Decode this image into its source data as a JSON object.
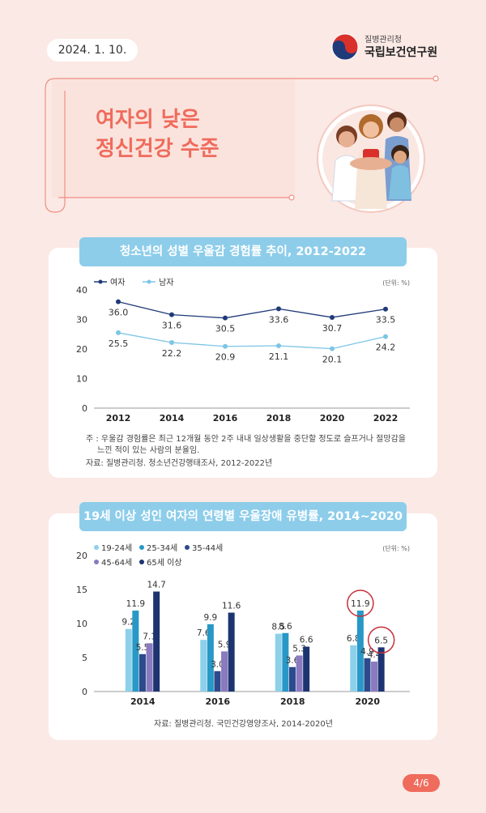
{
  "header": {
    "date": "2024. 1. 10.",
    "org_small": "질병관리청",
    "org_name": "국립보건연구원"
  },
  "title": {
    "line1": "여자의 낮은",
    "line2": "정신건강 수준"
  },
  "page": "4/6",
  "colors": {
    "accent": "#ef6b5c",
    "chip": "#8dcdea"
  },
  "chart_data": [
    {
      "type": "line",
      "title": "청소년의 성별 우울감 경험률 추이, 2012-2022",
      "unit": "(단위: %)",
      "x": [
        "2012",
        "2014",
        "2016",
        "2018",
        "2020",
        "2022"
      ],
      "ylim": [
        0,
        40
      ],
      "yticks": [
        0,
        10,
        20,
        30,
        40
      ],
      "series": [
        {
          "name": "여자",
          "color": "#1f3a78",
          "values": [
            36.0,
            31.6,
            30.5,
            33.6,
            30.7,
            33.5
          ]
        },
        {
          "name": "남자",
          "color": "#7cc5e6",
          "values": [
            25.5,
            22.2,
            20.9,
            21.1,
            20.1,
            24.2
          ]
        }
      ],
      "note": "주 : 우울감 경험률은 최근 12개월 동안 2주 내내 일상생활을 중단할 정도로 슬프거나 절망감을",
      "note2": "느낀 적이 있는 사람의 분율임.",
      "source": "자료: 질병관리청. 청소년건강행태조사, 2012-2022년"
    },
    {
      "type": "bar",
      "title": "19세 이상 성인 여자의 연령별 우울장애 유병률, 2014~2020",
      "unit": "(단위: %)",
      "categories": [
        "2014",
        "2016",
        "2018",
        "2020"
      ],
      "ylim": [
        0,
        20
      ],
      "yticks": [
        0,
        5,
        10,
        15,
        20
      ],
      "series": [
        {
          "name": "19-24세",
          "color": "#8dd0ea",
          "values": [
            9.2,
            7.6,
            8.5,
            6.8
          ]
        },
        {
          "name": "25-34세",
          "color": "#2898c6",
          "values": [
            11.9,
            9.9,
            8.6,
            11.9
          ]
        },
        {
          "name": "35-44세",
          "color": "#2c4a8c",
          "values": [
            5.5,
            3.0,
            3.6,
            4.9
          ]
        },
        {
          "name": "45-64세",
          "color": "#8a7ac0",
          "values": [
            7.1,
            5.9,
            5.3,
            4.4
          ]
        },
        {
          "name": "65세 이상",
          "color": "#1d3470",
          "values": [
            14.7,
            11.6,
            6.6,
            6.5
          ]
        }
      ],
      "highlighted": [
        {
          "category": "2020",
          "series": "25-34세"
        },
        {
          "category": "2020",
          "series": "65세 이상"
        }
      ],
      "source": "자료: 질병관리청. 국민건강영양조사, 2014-2020년"
    }
  ]
}
